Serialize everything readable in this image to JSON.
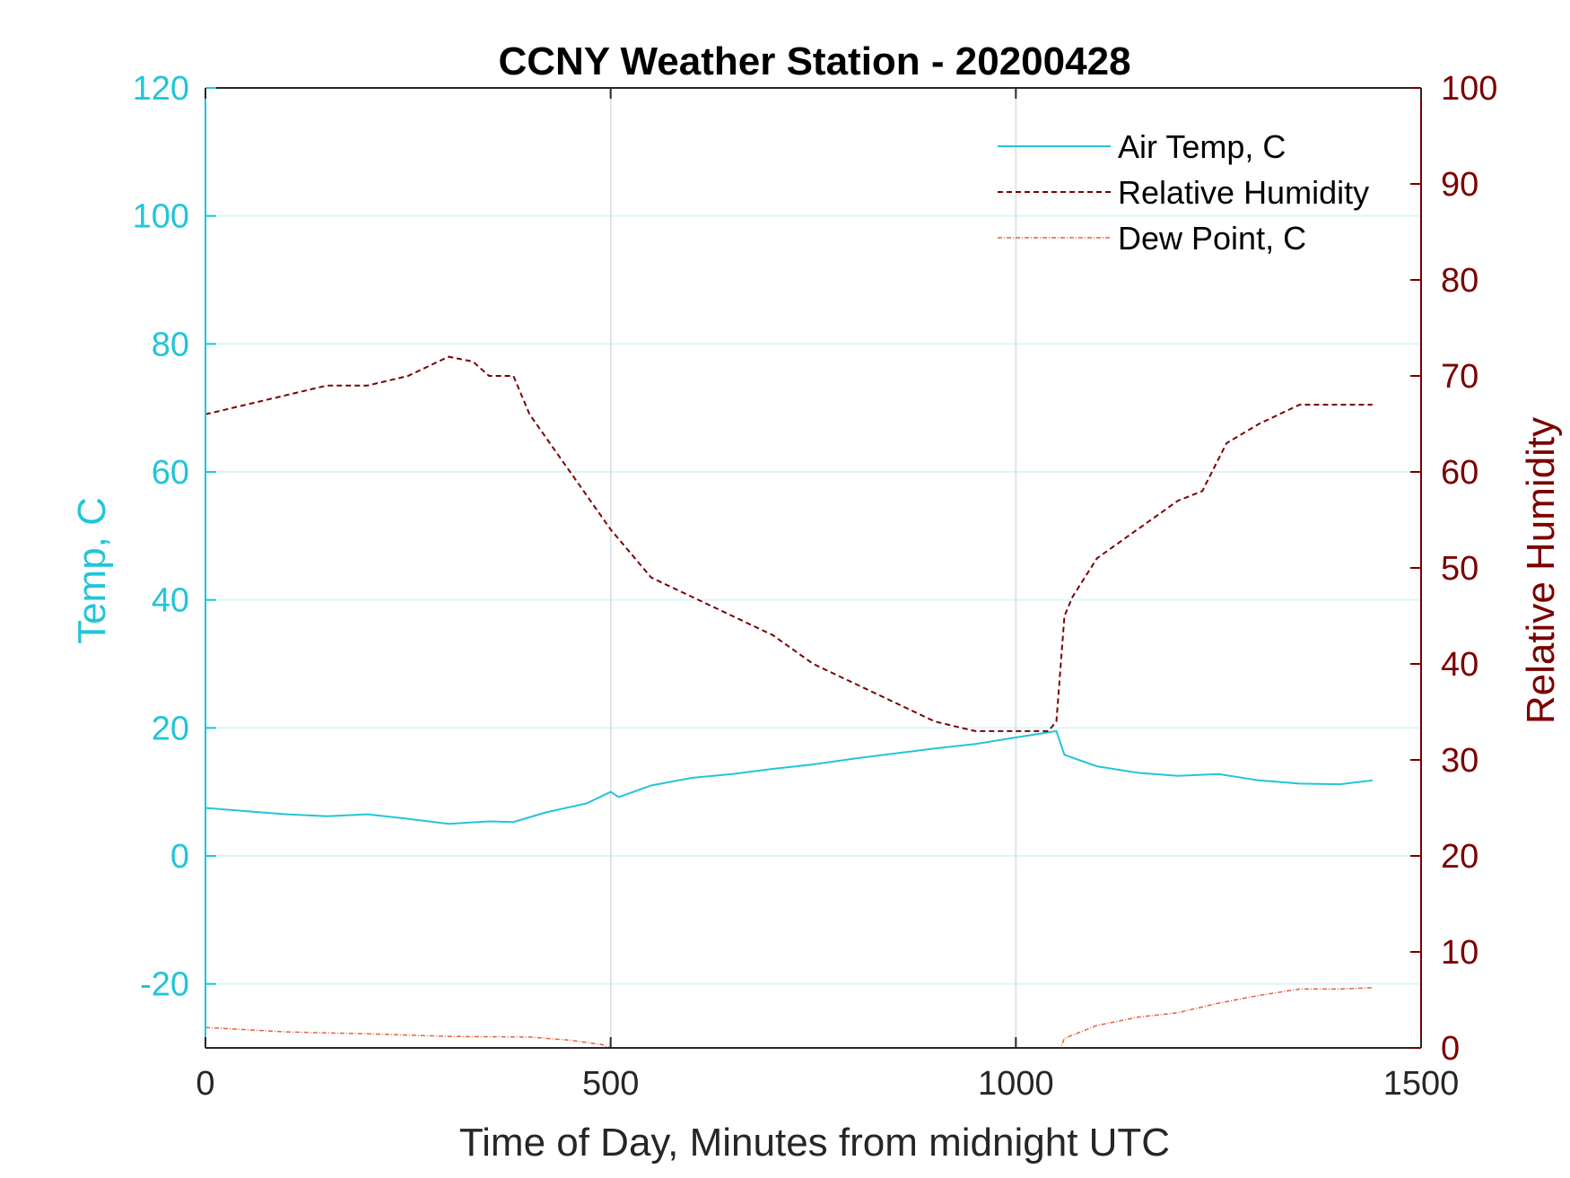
{
  "colors": {
    "left_axis": "#22C5D8",
    "right_axis": "#7B0000",
    "air_temp": "#22C5D8",
    "rel_humidity": "#7B0000",
    "dew_point": "#E0643A",
    "grid_h": "#DDF4F8",
    "grid_v": "#D6DCE4",
    "frame": "#262626"
  },
  "chart_data": {
    "type": "line",
    "title": "CCNY Weather Station - 20200428",
    "xlabel": "Time of Day, Minutes from midnight UTC",
    "ylabel_left": "Temp, C",
    "ylabel_right": "Relative Humidity",
    "xlim": [
      0,
      1500
    ],
    "ylim_left": [
      -30,
      120
    ],
    "ylim_right": [
      0,
      100
    ],
    "x_ticks": [
      "0",
      "500",
      "1000",
      "1500"
    ],
    "y_ticks_left": [
      "-20",
      "0",
      "20",
      "40",
      "60",
      "80",
      "100",
      "120"
    ],
    "y_ticks_right": [
      "0",
      "10",
      "20",
      "30",
      "40",
      "50",
      "60",
      "70",
      "80",
      "90",
      "100"
    ],
    "legend_position": "top-right",
    "grid": true,
    "series": [
      {
        "name": "Air Temp, C",
        "axis": "left",
        "style": "solid",
        "x": [
          0,
          50,
          100,
          150,
          200,
          250,
          300,
          350,
          380,
          420,
          470,
          500,
          510,
          550,
          600,
          650,
          700,
          750,
          800,
          850,
          900,
          950,
          1000,
          1050,
          1060,
          1100,
          1150,
          1200,
          1250,
          1300,
          1350,
          1400,
          1440
        ],
        "y": [
          7.5,
          7.0,
          6.5,
          6.2,
          6.5,
          5.8,
          5.0,
          5.4,
          5.3,
          6.8,
          8.2,
          10.0,
          9.2,
          11.0,
          12.2,
          12.8,
          13.6,
          14.3,
          15.2,
          16.0,
          16.8,
          17.5,
          18.5,
          19.5,
          15.8,
          14.0,
          13.0,
          12.5,
          12.8,
          11.8,
          11.3,
          11.2,
          11.8
        ]
      },
      {
        "name": "Relative Humidity",
        "axis": "right",
        "style": "dashed",
        "x": [
          0,
          50,
          100,
          150,
          200,
          250,
          300,
          330,
          350,
          380,
          400,
          450,
          500,
          550,
          600,
          650,
          700,
          750,
          800,
          850,
          900,
          950,
          1000,
          1040,
          1050,
          1060,
          1070,
          1100,
          1150,
          1200,
          1230,
          1260,
          1300,
          1350,
          1400,
          1440
        ],
        "y": [
          66,
          67,
          68,
          69,
          69,
          70,
          72,
          71.5,
          70,
          70,
          66,
          60,
          54,
          49,
          47,
          45,
          43,
          40,
          38,
          36,
          34,
          33,
          33,
          33,
          34,
          45,
          47,
          51,
          54,
          57,
          58,
          63,
          65,
          67,
          67,
          67
        ]
      },
      {
        "name": "Dew Point, C",
        "axis": "left",
        "style": "dashdot",
        "x": [
          0,
          100,
          200,
          300,
          400,
          450,
          490,
          500,
          1055,
          1060,
          1100,
          1150,
          1200,
          1250,
          1300,
          1350,
          1400,
          1440
        ],
        "y": [
          -26.8,
          -27.5,
          -27.8,
          -28.2,
          -28.3,
          -28.8,
          -29.5,
          -30,
          -30,
          -28.5,
          -26.5,
          -25.2,
          -24.5,
          -23,
          -21.8,
          -20.8,
          -20.8,
          -20.6
        ]
      }
    ]
  }
}
